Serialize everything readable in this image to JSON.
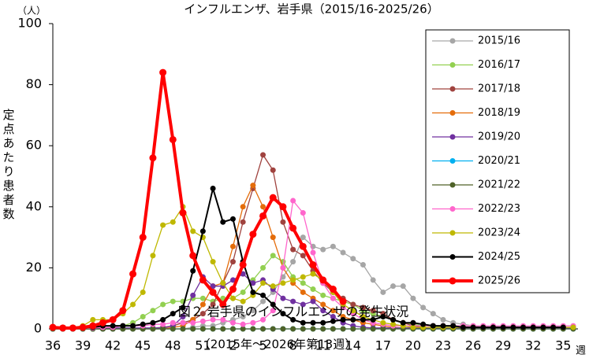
{
  "chart_data": {
    "type": "line",
    "title": "インフルエンザ、岩手県（2015/16-2025/26）",
    "y_unit": "（人）",
    "y_label": "定点あたり患者数",
    "x_unit": "週",
    "caption": "図２ 岩手県のインフルエンザの発生状況",
    "caption_sub": "（2015年～2026年第13週）",
    "categories": [
      "36",
      null,
      null,
      "39",
      null,
      null,
      "42",
      null,
      null,
      "45",
      null,
      null,
      "48",
      null,
      null,
      "51",
      null,
      null,
      "2",
      null,
      null,
      "5",
      null,
      null,
      "8",
      null,
      null,
      "11",
      null,
      null,
      "14",
      null,
      null,
      "17",
      null,
      null,
      "20",
      null,
      null,
      "23",
      null,
      null,
      "26",
      null,
      null,
      "29",
      null,
      null,
      "32",
      null,
      null,
      "35",
      null
    ],
    "ylim": [
      0,
      100
    ],
    "yticks": [
      0,
      20,
      40,
      60,
      80,
      100
    ],
    "grid": false,
    "legend": "upper right",
    "series": [
      {
        "name": "2015/16",
        "color": "#a6a6a6",
        "line_width": 1.3,
        "values": [
          0,
          0,
          0,
          0,
          0,
          0,
          0,
          0,
          0,
          0,
          0,
          0,
          0,
          0,
          0.5,
          1,
          1,
          2,
          3,
          4,
          6,
          9,
          12,
          17,
          22,
          30,
          27,
          26,
          27,
          25,
          23,
          21,
          16,
          12,
          14,
          14,
          10,
          7,
          5,
          3,
          2,
          1.5,
          1,
          0.5,
          0.5,
          0.5,
          0.5,
          0.5,
          0.5,
          0.5,
          0.5,
          0.5,
          0.5
        ]
      },
      {
        "name": "2016/17",
        "color": "#92d050",
        "line_width": 1.3,
        "values": [
          0,
          0,
          0,
          0,
          0,
          0,
          0.5,
          1,
          2,
          4,
          6,
          8,
          9,
          9,
          10,
          10,
          9,
          10,
          10,
          12,
          16,
          20,
          24,
          22,
          17,
          15,
          13,
          11,
          10,
          9,
          8,
          6,
          5,
          4,
          3,
          2,
          1.5,
          1,
          1,
          0.5,
          0.5,
          0.3,
          0.3,
          0.3,
          0.3,
          0.3,
          0.3,
          0.3,
          0.3,
          0.3,
          0.3,
          0.3,
          0.3
        ]
      },
      {
        "name": "2017/18",
        "color": "#a0433f",
        "line_width": 1.3,
        "values": [
          0,
          0,
          0,
          0,
          0,
          0,
          0,
          0,
          0,
          0,
          0.3,
          0.5,
          1,
          2,
          3,
          5,
          8,
          15,
          22,
          35,
          46,
          57,
          52,
          35,
          26,
          24,
          19,
          15,
          12,
          10,
          8,
          7,
          6,
          5,
          3,
          2,
          1,
          0.5,
          0.3,
          0.3,
          0.3,
          0.3,
          0.3,
          0.3,
          0.3,
          0.3,
          0.3,
          0.3,
          0.3,
          0.3,
          0.3,
          0.3,
          0.3
        ]
      },
      {
        "name": "2018/19",
        "color": "#e46c0a",
        "line_width": 1.3,
        "values": [
          0,
          0,
          0,
          0,
          0,
          0,
          0,
          0,
          0,
          0,
          0,
          0,
          0.5,
          1,
          3,
          8,
          14,
          15,
          27,
          40,
          47,
          40,
          30,
          20,
          15,
          12,
          10,
          8,
          6,
          4,
          3,
          2,
          1.5,
          1,
          0.5,
          0.3,
          0.3,
          0.3,
          0.3,
          0.3,
          0.3,
          0.3,
          0.3,
          0.3,
          0.3,
          0.3,
          0.3,
          0.3,
          0.3,
          0.3,
          0.3,
          0.3,
          0.3
        ]
      },
      {
        "name": "2019/20",
        "color": "#7030a0",
        "line_width": 1.3,
        "values": [
          0.3,
          0.3,
          0.3,
          0.3,
          0.3,
          0.3,
          0.3,
          0.3,
          0.3,
          0.3,
          0.3,
          0.3,
          1,
          4,
          11,
          17,
          14,
          14,
          16,
          18,
          15,
          16,
          13,
          10,
          9,
          8,
          9,
          6,
          4,
          2,
          1,
          0.5,
          0.3,
          0.3,
          0.3,
          0.3,
          0.3,
          0.3,
          0.3,
          0.3,
          0.3,
          0.3,
          0.3,
          0.3,
          0.3,
          0.3,
          0.3,
          0.3,
          0.3,
          0.3,
          0.3,
          0.3,
          0.3
        ]
      },
      {
        "name": "2020/21",
        "color": "#00b0f0",
        "line_width": 1.3,
        "values": [
          0,
          0,
          0,
          0,
          0,
          0,
          0,
          0,
          0,
          0,
          0,
          0,
          0,
          0,
          0,
          0,
          0,
          0,
          0,
          0,
          0,
          0,
          0,
          0,
          0,
          0,
          0,
          0,
          0,
          0,
          0,
          0,
          0,
          0,
          0,
          0,
          0,
          0,
          0,
          0,
          0,
          0,
          0,
          0,
          0,
          0,
          0,
          0,
          0,
          0,
          0,
          0,
          0
        ]
      },
      {
        "name": "2021/22",
        "color": "#4f6228",
        "line_width": 1.3,
        "values": [
          0,
          0,
          0,
          0,
          0,
          0,
          0,
          0,
          0,
          0,
          0,
          0,
          0,
          0,
          0,
          0,
          0,
          0,
          0,
          0,
          0,
          0,
          0,
          0,
          0,
          0,
          0,
          0,
          0,
          0,
          0,
          0,
          0,
          0,
          0,
          0,
          0,
          0,
          0,
          0,
          0,
          0,
          0,
          0,
          0,
          0,
          0,
          0,
          0,
          0,
          0,
          0,
          0
        ]
      },
      {
        "name": "2022/23",
        "color": "#ff66cc",
        "line_width": 1.3,
        "values": [
          0.3,
          0.3,
          0.3,
          0.3,
          0.3,
          0.5,
          0.5,
          1,
          1,
          1,
          1.5,
          1.5,
          2,
          2,
          2,
          2.5,
          3,
          3,
          2,
          1.5,
          2,
          3,
          6,
          20,
          42,
          38,
          25,
          15,
          10,
          7,
          5,
          3,
          2,
          1.5,
          1,
          1,
          1,
          1,
          1,
          1,
          1,
          1,
          1,
          1,
          1,
          1,
          1,
          1,
          1,
          1,
          1,
          1,
          1
        ]
      },
      {
        "name": "2023/24",
        "color": "#bfb800",
        "line_width": 1.3,
        "values": [
          0.3,
          0.3,
          0.5,
          1,
          3,
          3,
          3,
          5,
          8,
          12,
          24,
          34,
          35,
          40,
          32,
          30,
          22,
          15,
          10,
          9,
          11,
          15,
          14,
          15,
          16,
          17,
          18,
          16,
          12,
          8,
          6,
          4,
          3,
          2,
          1.5,
          1,
          0.5,
          0.5,
          0.5,
          0.5,
          0.5,
          0.5,
          0.5,
          0.5,
          0.5,
          0.5,
          0.5,
          0.5,
          0.5,
          0.5,
          0.5,
          0.5,
          0.5
        ]
      },
      {
        "name": "2024/25",
        "color": "#000000",
        "line_width": 2,
        "values": [
          0.3,
          0.3,
          0.3,
          0.5,
          0.5,
          1,
          1,
          1,
          1,
          1.5,
          2,
          3,
          5,
          7,
          19,
          32,
          46,
          35,
          36,
          22,
          12,
          11,
          8,
          5,
          3,
          2,
          2,
          2,
          2.5,
          3,
          3,
          3,
          3,
          4,
          3,
          2,
          2,
          1.5,
          1,
          1,
          1,
          0.5,
          0.5,
          0.5,
          0.5,
          0.5,
          0.5,
          0.5,
          0.5,
          0.5,
          0.5,
          0.5,
          null
        ]
      },
      {
        "name": "2025/26",
        "color": "#ff0000",
        "line_width": 4,
        "values": [
          0.5,
          0.3,
          0.3,
          0.5,
          1,
          2,
          3,
          6,
          18,
          30,
          56,
          84,
          62,
          38,
          24,
          16,
          12,
          8,
          13,
          21,
          31,
          37,
          43,
          40,
          33,
          27,
          21,
          16,
          13,
          9,
          null,
          null,
          null,
          null,
          null,
          null,
          null,
          null,
          null,
          null,
          null,
          null,
          null,
          null,
          null,
          null,
          null,
          null,
          null,
          null,
          null,
          null,
          null
        ]
      }
    ]
  }
}
